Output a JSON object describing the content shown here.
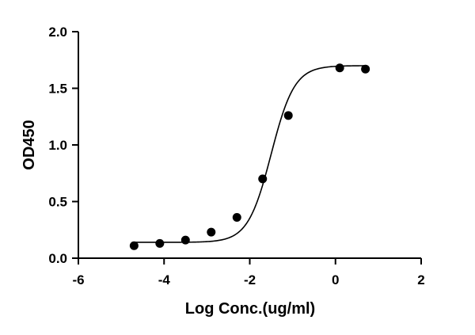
{
  "chart_data": {
    "type": "scatter",
    "title": "",
    "xlabel": "Log Conc.(ug/ml)",
    "ylabel": "OD450",
    "xlim": [
      -6,
      2
    ],
    "ylim": [
      0,
      2.0
    ],
    "x_ticks": [
      "-6",
      "-4",
      "-2",
      "0",
      "2"
    ],
    "y_ticks": [
      "0.0",
      "0.5",
      "1.0",
      "1.5",
      "2.0"
    ],
    "grid": false,
    "legend": "none",
    "points": {
      "x": [
        -4.7,
        -4.1,
        -3.5,
        -2.9,
        -2.3,
        -1.7,
        -1.1,
        0.1,
        0.7
      ],
      "y": [
        0.11,
        0.13,
        0.16,
        0.23,
        0.36,
        0.7,
        1.26,
        1.68,
        1.67
      ]
    },
    "fit": {
      "model": "4PL sigmoid",
      "bottom": 0.14,
      "top": 1.7,
      "logEC50": -1.5,
      "hill": 1.6
    },
    "colors": {
      "marker": "#000000",
      "line": "#000000",
      "axes": "#000000"
    }
  }
}
